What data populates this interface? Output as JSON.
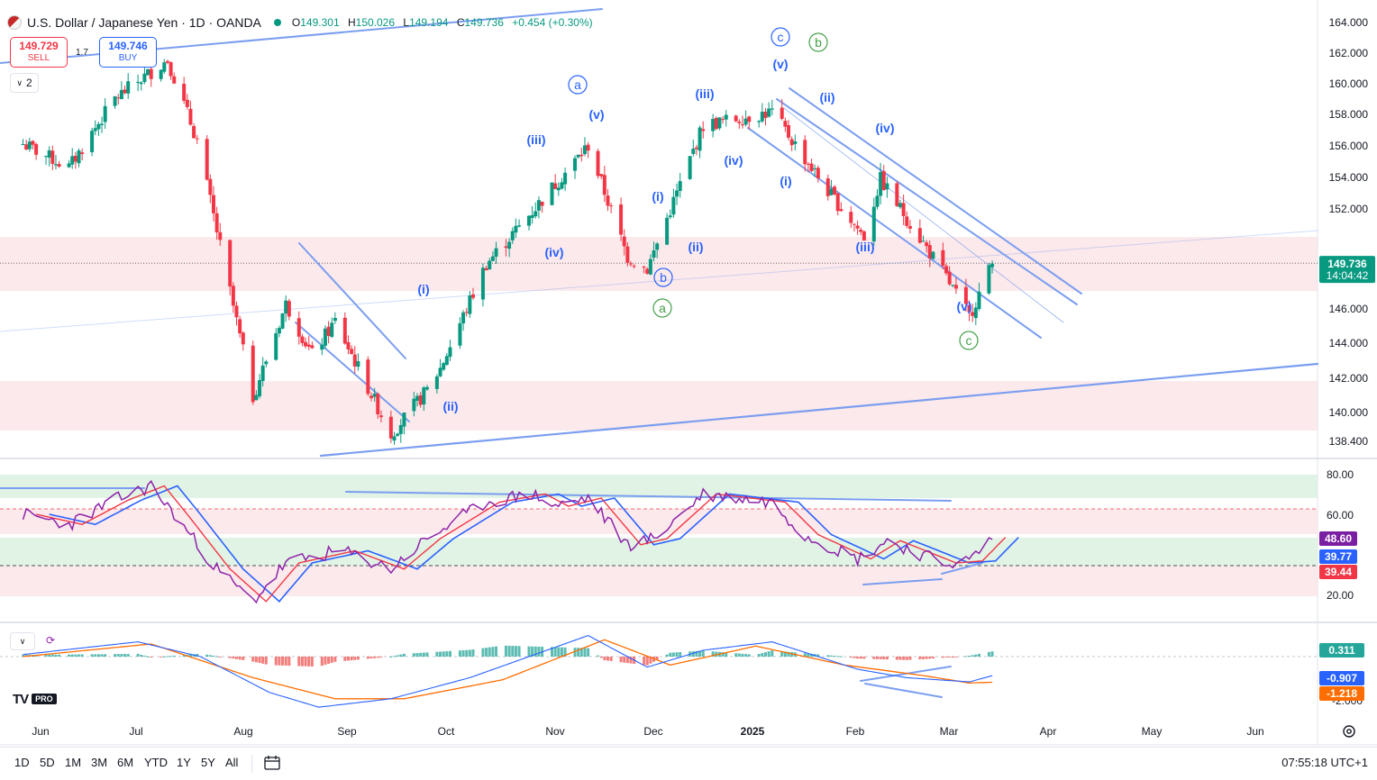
{
  "header": {
    "title": "U.S. Dollar / Japanese Yen · 1D · OANDA",
    "open_label": "O",
    "open": "149.301",
    "high_label": "H",
    "high": "150.026",
    "low_label": "L",
    "low": "149.194",
    "close_label": "C",
    "close": "149.736",
    "change": "+0.454 (+0.30%)"
  },
  "trade": {
    "sell_price": "149.729",
    "sell_label": "SELL",
    "buy_price": "149.746",
    "buy_label": "BUY",
    "spread": "1.7"
  },
  "lot_selector": "2",
  "price_axis": {
    "ticks": [
      "164.000",
      "162.000",
      "160.000",
      "158.000",
      "156.000",
      "154.000",
      "152.000",
      "148.000",
      "146.000",
      "144.000",
      "142.000",
      "140.000",
      "138.400"
    ],
    "last_price": "149.736",
    "countdown": "14:04:42",
    "last_price_color": "#089981"
  },
  "rsi_axis": {
    "ticks": [
      "80.00",
      "60.00",
      "20.00"
    ],
    "badges": [
      {
        "text": "48.60",
        "color": "#7b1fa2"
      },
      {
        "text": "39.77",
        "color": "#2962ff"
      },
      {
        "text": "39.44",
        "color": "#f23645"
      }
    ]
  },
  "macd_axis": {
    "ticks": [
      "-2.000"
    ],
    "badges": [
      {
        "text": "0.311",
        "color": "#26a69a"
      },
      {
        "text": "-0.907",
        "color": "#2962ff"
      },
      {
        "text": "-1.218",
        "color": "#ff6d00"
      }
    ]
  },
  "time_axis": [
    "Jun",
    "Jul",
    "Aug",
    "Sep",
    "Oct",
    "Nov",
    "Dec",
    "2025",
    "Feb",
    "Mar",
    "Apr",
    "May",
    "Jun"
  ],
  "wave_labels": {
    "blue_plain": [
      "(i)",
      "(ii)",
      "(iii)",
      "(iv)",
      "(v)",
      "(i)",
      "(ii)",
      "(iii)",
      "(iv)",
      "(i)",
      "(ii)",
      "(iii)",
      "(iv)",
      "(v)",
      "(i)",
      "(ii)",
      "(iii)",
      "(iv)",
      "(v)"
    ],
    "blue_circled": [
      "a",
      "b",
      "c"
    ],
    "green_circled": [
      "a",
      "b",
      "c"
    ]
  },
  "timeframes": [
    "1D",
    "5D",
    "1M",
    "3M",
    "6M",
    "YTD",
    "1Y",
    "5Y",
    "All"
  ],
  "clock": "07:55:18 UTC+1",
  "logo": {
    "text": "TV",
    "badge": "PRO"
  },
  "icons": {
    "flag": "usd-jpy-flag-icon",
    "calendar": "calendar-icon",
    "settings": "gear-icon",
    "chevron": "chevron-down-icon",
    "sync": "sync-icon"
  },
  "colors": {
    "up": "#089981",
    "down": "#f23645",
    "wave_blue": "#2962ff",
    "wave_green": "#43a047",
    "channel": "#7b9ef0",
    "rsi": "#8e24aa",
    "rsi_ma": "#2962ff",
    "rsi_ma2": "#f23645",
    "macd": "#2962ff",
    "signal": "#ff6d00",
    "zone_red": "#fbe4e6",
    "zone_green": "#d9f0df"
  },
  "chart_data": {
    "type": "candlestick",
    "title": "U.S. Dollar / Japanese Yen · 1D · OANDA",
    "price_range": [
      138.4,
      164.0
    ],
    "x_range": [
      "2024-05-20",
      "2025-06-25"
    ],
    "price_path": [
      [
        "2024-05-27",
        156.8
      ],
      [
        "2024-06-10",
        155.4
      ],
      [
        "2024-06-24",
        159.5
      ],
      [
        "2024-07-10",
        161.8
      ],
      [
        "2024-07-19",
        157.0
      ],
      [
        "2024-08-05",
        141.8
      ],
      [
        "2024-08-15",
        147.3
      ],
      [
        "2024-08-23",
        144.3
      ],
      [
        "2024-08-30",
        146.3
      ],
      [
        "2024-09-16",
        139.6
      ],
      [
        "2024-09-27",
        142.2
      ],
      [
        "2024-10-01",
        143.5
      ],
      [
        "2024-10-15",
        149.7
      ],
      [
        "2024-10-25",
        151.9
      ],
      [
        "2024-11-15",
        156.7
      ],
      [
        "2024-11-27",
        150.1
      ],
      [
        "2024-12-03",
        149.4
      ],
      [
        "2024-12-20",
        157.9
      ],
      [
        "2025-01-10",
        158.7
      ],
      [
        "2025-01-27",
        154.0
      ],
      [
        "2025-02-07",
        151.3
      ],
      [
        "2025-02-12",
        154.7
      ],
      [
        "2025-03-03",
        149.2
      ],
      [
        "2025-03-11",
        146.6
      ],
      [
        "2025-03-18",
        149.7
      ]
    ],
    "rsi_range": [
      10,
      80
    ],
    "rsi_path": [
      [
        "2024-05-27",
        60
      ],
      [
        "2024-06-10",
        55
      ],
      [
        "2024-06-24",
        67
      ],
      [
        "2024-07-05",
        74
      ],
      [
        "2024-07-12",
        60
      ],
      [
        "2024-07-25",
        33
      ],
      [
        "2024-08-05",
        17
      ],
      [
        "2024-08-15",
        36
      ],
      [
        "2024-09-01",
        42
      ],
      [
        "2024-09-16",
        33
      ],
      [
        "2024-09-27",
        48
      ],
      [
        "2024-10-15",
        66
      ],
      [
        "2024-10-29",
        70
      ],
      [
        "2024-11-05",
        64
      ],
      [
        "2024-11-15",
        68
      ],
      [
        "2024-11-27",
        45
      ],
      [
        "2024-12-05",
        48
      ],
      [
        "2024-12-20",
        70
      ],
      [
        "2025-01-10",
        66
      ],
      [
        "2025-01-20",
        50
      ],
      [
        "2025-02-05",
        38
      ],
      [
        "2025-02-14",
        47
      ],
      [
        "2025-03-03",
        36
      ],
      [
        "2025-03-11",
        37
      ],
      [
        "2025-03-18",
        48.6
      ]
    ],
    "macd_range": [
      -2.3,
      0.9
    ],
    "macd_path": [
      [
        "2024-05-27",
        0.1
      ],
      [
        "2024-07-01",
        0.7
      ],
      [
        "2024-07-20",
        0.0
      ],
      [
        "2024-08-10",
        -1.7
      ],
      [
        "2024-08-25",
        -2.4
      ],
      [
        "2024-09-16",
        -2.0
      ],
      [
        "2024-10-10",
        -1.0
      ],
      [
        "2024-11-15",
        1.0
      ],
      [
        "2024-12-03",
        -0.5
      ],
      [
        "2024-12-20",
        0.3
      ],
      [
        "2025-01-10",
        0.7
      ],
      [
        "2025-02-05",
        -0.6
      ],
      [
        "2025-02-20",
        -1.0
      ],
      [
        "2025-03-11",
        -1.2
      ],
      [
        "2025-03-18",
        -0.907
      ]
    ],
    "signal_path": [
      [
        "2024-05-27",
        0.0
      ],
      [
        "2024-07-05",
        0.6
      ],
      [
        "2024-08-05",
        -1.0
      ],
      [
        "2024-08-30",
        -2.0
      ],
      [
        "2024-09-20",
        -2.0
      ],
      [
        "2024-10-20",
        -1.1
      ],
      [
        "2024-11-20",
        0.8
      ],
      [
        "2024-12-10",
        -0.4
      ],
      [
        "2025-01-05",
        0.5
      ],
      [
        "2025-02-01",
        -0.4
      ],
      [
        "2025-02-25",
        -0.9
      ],
      [
        "2025-03-11",
        -1.25
      ],
      [
        "2025-03-18",
        -1.218
      ]
    ]
  }
}
